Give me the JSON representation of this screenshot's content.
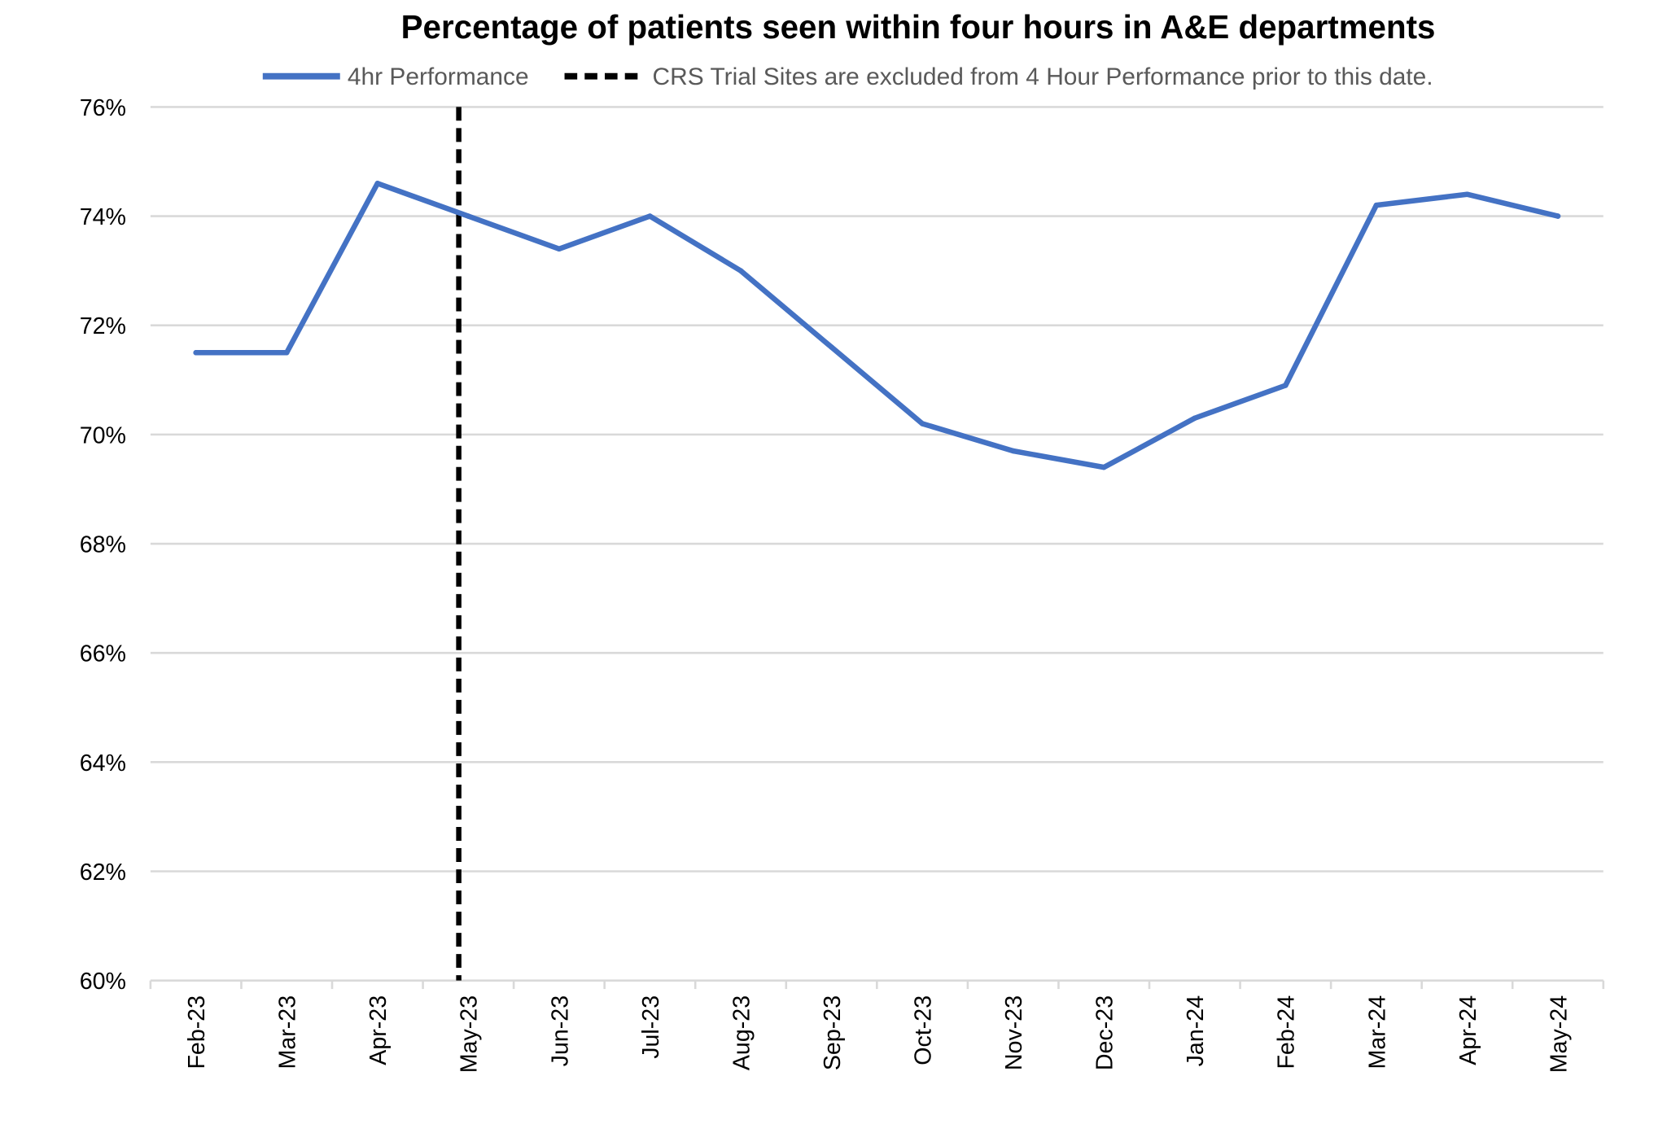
{
  "chart_data": {
    "type": "line",
    "title": "Percentage of patients seen within four hours in A&E departments",
    "xlabel": "",
    "ylabel": "",
    "categories": [
      "Feb-23",
      "Mar-23",
      "Apr-23",
      "May-23",
      "Jun-23",
      "Jul-23",
      "Aug-23",
      "Sep-23",
      "Oct-23",
      "Nov-23",
      "Dec-23",
      "Jan-24",
      "Feb-24",
      "Mar-24",
      "Apr-24",
      "May-24"
    ],
    "series": [
      {
        "name": "4hr Performance",
        "color": "#4472c4",
        "values": [
          71.5,
          71.5,
          74.6,
          74.0,
          73.4,
          74.0,
          73.0,
          71.6,
          70.2,
          69.7,
          69.4,
          70.3,
          70.9,
          74.2,
          74.4,
          74.0
        ]
      }
    ],
    "reference_line": {
      "name": "CRS Trial Sites are excluded from 4 Hour Performance prior to this date.",
      "at_category": "May-23",
      "color": "#000000",
      "style": "dashed"
    },
    "ylim": [
      60,
      76
    ],
    "yticks": [
      60,
      62,
      64,
      66,
      68,
      70,
      72,
      74,
      76
    ],
    "ytick_labels": [
      "60%",
      "62%",
      "64%",
      "66%",
      "68%",
      "70%",
      "72%",
      "74%",
      "76%"
    ],
    "grid": true,
    "legend_position": "top"
  }
}
